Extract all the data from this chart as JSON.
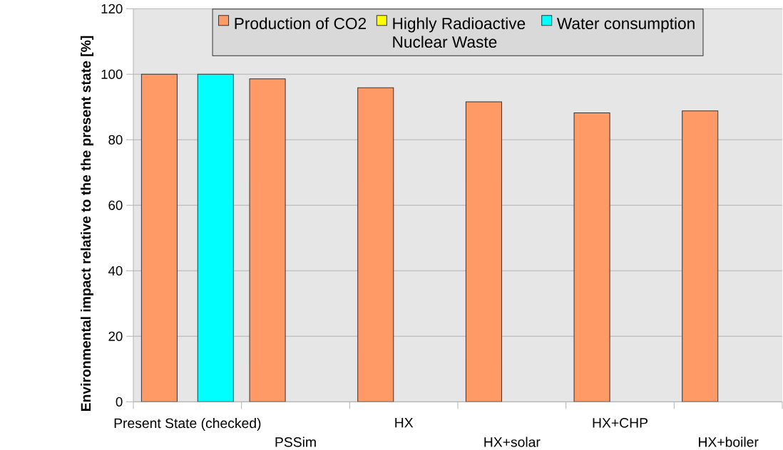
{
  "chart_data": {
    "type": "bar",
    "ylabel": "Environmental impact relative to the the present state [%]",
    "categories": [
      "Present State (checked)",
      "PSSim",
      "HX",
      "HX+solar",
      "HX+CHP",
      "HX+boiler"
    ],
    "series": [
      {
        "name": "Production of CO2",
        "color": "#ff9966",
        "values": [
          100,
          98.6,
          95.9,
          91.6,
          88.2,
          88.8
        ]
      },
      {
        "name": "Highly Radioactive Nuclear Waste",
        "color": "#ffff00",
        "values": [
          null,
          null,
          null,
          null,
          null,
          null
        ]
      },
      {
        "name": "Water consumption",
        "color": "#00ffff",
        "values": [
          100,
          null,
          null,
          null,
          null,
          null
        ]
      }
    ],
    "ylim": [
      0,
      120
    ],
    "yticks": [
      0,
      20,
      40,
      60,
      80,
      100,
      120
    ],
    "grid": "y",
    "legend": "top"
  }
}
